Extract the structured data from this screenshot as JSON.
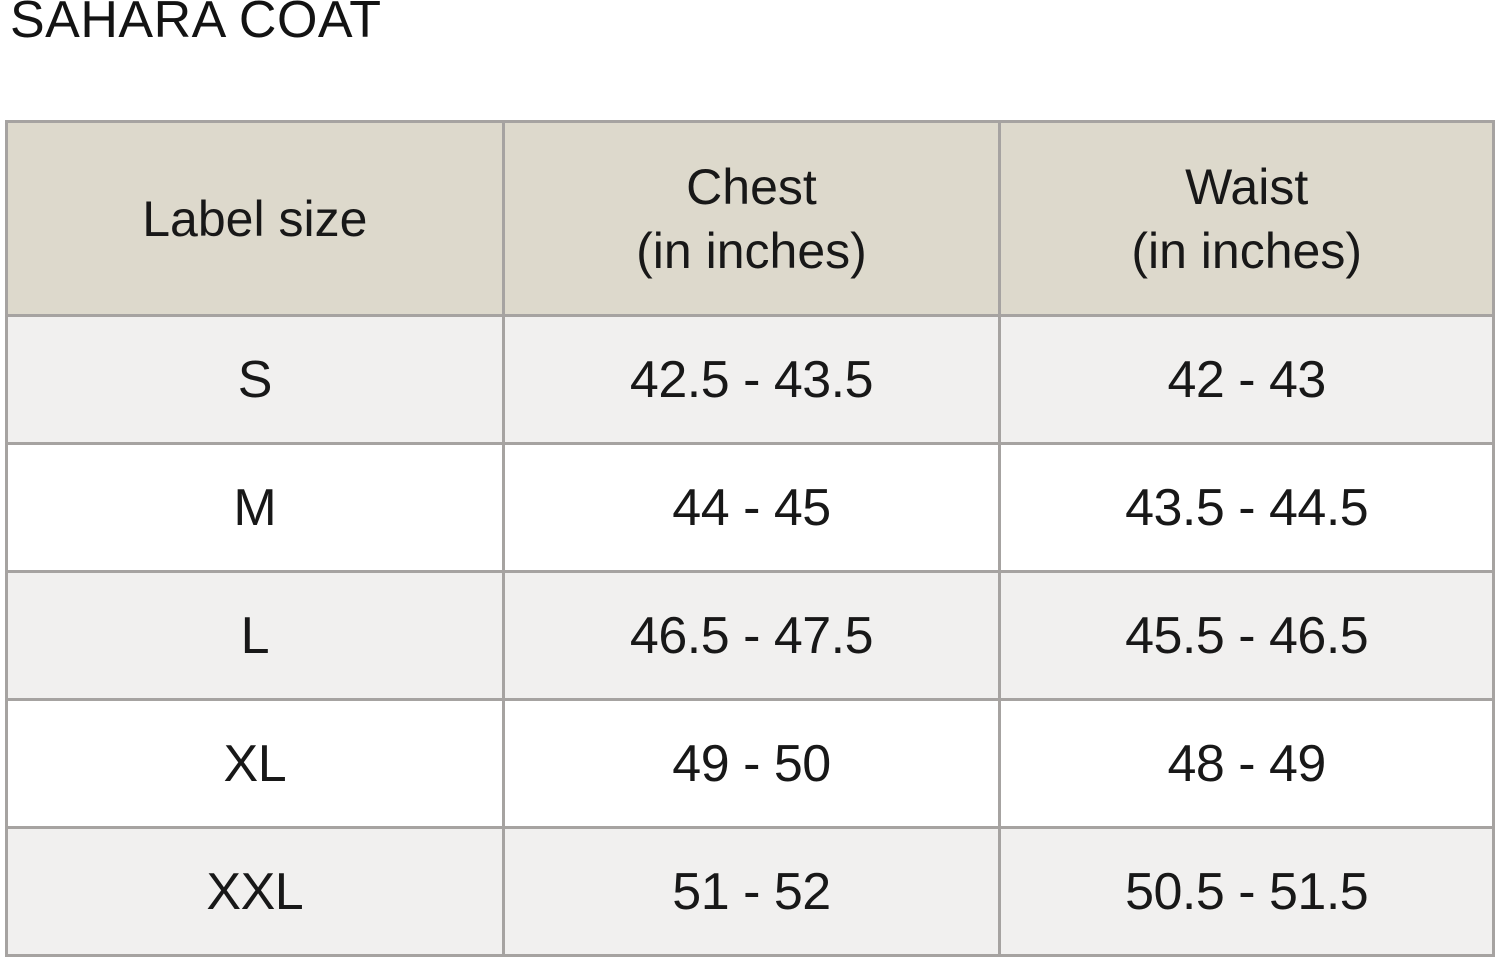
{
  "title": "SAHARA COAT",
  "colors": {
    "page_bg": "#ffffff",
    "header_bg": "#ddd9cc",
    "alt_row_bg": "#f1f0ef",
    "border": "#a6a3a1",
    "text": "#181818"
  },
  "table": {
    "headers": [
      {
        "line1": "Label size",
        "line2": ""
      },
      {
        "line1": "Chest",
        "line2": "(in inches)"
      },
      {
        "line1": "Waist",
        "line2": "(in inches)"
      }
    ],
    "rows": [
      {
        "size": "S",
        "chest": "42.5 - 43.5",
        "waist": "42 - 43"
      },
      {
        "size": "M",
        "chest": "44 - 45",
        "waist": "43.5 - 44.5"
      },
      {
        "size": "L",
        "chest": "46.5 - 47.5",
        "waist": "45.5 - 46.5"
      },
      {
        "size": "XL",
        "chest": "49 - 50",
        "waist": "48 - 49"
      },
      {
        "size": "XXL",
        "chest": "51 - 52",
        "waist": "50.5 - 51.5"
      }
    ]
  },
  "chart_data": {
    "type": "table",
    "title": "SAHARA COAT",
    "columns": [
      "Label size",
      "Chest (in inches)",
      "Waist (in inches)"
    ],
    "rows": [
      [
        "S",
        "42.5 - 43.5",
        "42 - 43"
      ],
      [
        "M",
        "44 - 45",
        "43.5 - 44.5"
      ],
      [
        "L",
        "46.5 - 47.5",
        "45.5 - 46.5"
      ],
      [
        "XL",
        "49 - 50",
        "48 - 49"
      ],
      [
        "XXL",
        "51 - 52",
        "50.5 - 51.5"
      ]
    ]
  }
}
